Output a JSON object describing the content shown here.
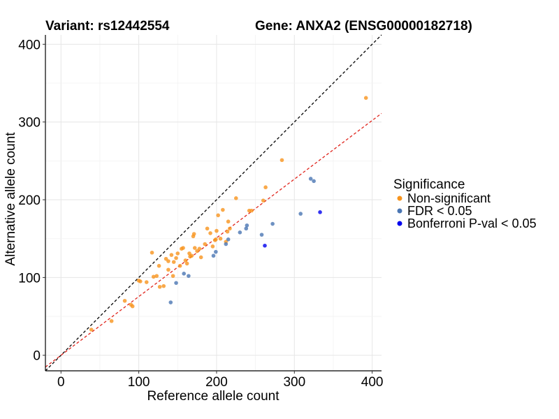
{
  "chart_data": {
    "type": "scatter",
    "title_left": "Variant: rs12442554",
    "title_right": "Gene: ANXA2 (ENSG00000182718)",
    "xlabel": "Reference allele count",
    "ylabel": "Alternative allele count",
    "xlim": [
      -20,
      412
    ],
    "ylim": [
      -20,
      412
    ],
    "x_ticks": [
      0,
      100,
      200,
      300,
      400
    ],
    "y_ticks": [
      0,
      100,
      200,
      300,
      400
    ],
    "grid": true,
    "legend": {
      "title": "Significance",
      "position": "right",
      "entries": [
        {
          "label": "Non-significant",
          "color": "#f7941d"
        },
        {
          "label": "FDR < 0.05",
          "color": "#4a76b3"
        },
        {
          "label": "Bonferroni P-val < 0.05",
          "color": "#0000ee"
        }
      ]
    },
    "reference_lines": [
      {
        "name": "identity",
        "slope": 1.0,
        "intercept": 0,
        "color": "#000000",
        "dash": true
      },
      {
        "name": "fitted",
        "slope": 0.755,
        "intercept": 0,
        "color": "#e0231b",
        "dash": true
      }
    ],
    "series": [
      {
        "name": "Non-significant",
        "color": "#f7941d",
        "points": [
          [
            39,
            33
          ],
          [
            65,
            44
          ],
          [
            82,
            70
          ],
          [
            90,
            65
          ],
          [
            92,
            63
          ],
          [
            100,
            96
          ],
          [
            102,
            95
          ],
          [
            110,
            94
          ],
          [
            117,
            132
          ],
          [
            119,
            101
          ],
          [
            123,
            102
          ],
          [
            126,
            115
          ],
          [
            127,
            88
          ],
          [
            132,
            89
          ],
          [
            135,
            124
          ],
          [
            138,
            110
          ],
          [
            138,
            121
          ],
          [
            142,
            129
          ],
          [
            144,
            102
          ],
          [
            145,
            120
          ],
          [
            148,
            125
          ],
          [
            150,
            131
          ],
          [
            153,
            115
          ],
          [
            155,
            137
          ],
          [
            157,
            138
          ],
          [
            160,
            122
          ],
          [
            162,
            118
          ],
          [
            165,
            131
          ],
          [
            166,
            127
          ],
          [
            168,
            128
          ],
          [
            170,
            153
          ],
          [
            171,
            156
          ],
          [
            172,
            138
          ],
          [
            175,
            134
          ],
          [
            178,
            137
          ],
          [
            180,
            126
          ],
          [
            185,
            143
          ],
          [
            188,
            163
          ],
          [
            192,
            157
          ],
          [
            195,
            140
          ],
          [
            198,
            148
          ],
          [
            199,
            149
          ],
          [
            200,
            160
          ],
          [
            202,
            180
          ],
          [
            205,
            150
          ],
          [
            208,
            187
          ],
          [
            212,
            146
          ],
          [
            214,
            159
          ],
          [
            215,
            172
          ],
          [
            217,
            163
          ],
          [
            225,
            202
          ],
          [
            242,
            186
          ],
          [
            245,
            186
          ],
          [
            260,
            199
          ],
          [
            263,
            216
          ],
          [
            284,
            251
          ],
          [
            392,
            331
          ]
        ]
      },
      {
        "name": "FDR < 0.05",
        "color": "#4a76b3",
        "points": [
          [
            141,
            68
          ],
          [
            148,
            93
          ],
          [
            158,
            105
          ],
          [
            164,
            102
          ],
          [
            196,
            128
          ],
          [
            199,
            133
          ],
          [
            212,
            143
          ],
          [
            215,
            149
          ],
          [
            230,
            158
          ],
          [
            238,
            163
          ],
          [
            239,
            167
          ],
          [
            258,
            155
          ],
          [
            272,
            169
          ],
          [
            308,
            182
          ],
          [
            321,
            227
          ],
          [
            325,
            224
          ]
        ]
      },
      {
        "name": "Bonferroni P-val < 0.05",
        "color": "#0000ee",
        "points": [
          [
            262,
            141
          ],
          [
            333,
            184
          ]
        ]
      }
    ]
  }
}
